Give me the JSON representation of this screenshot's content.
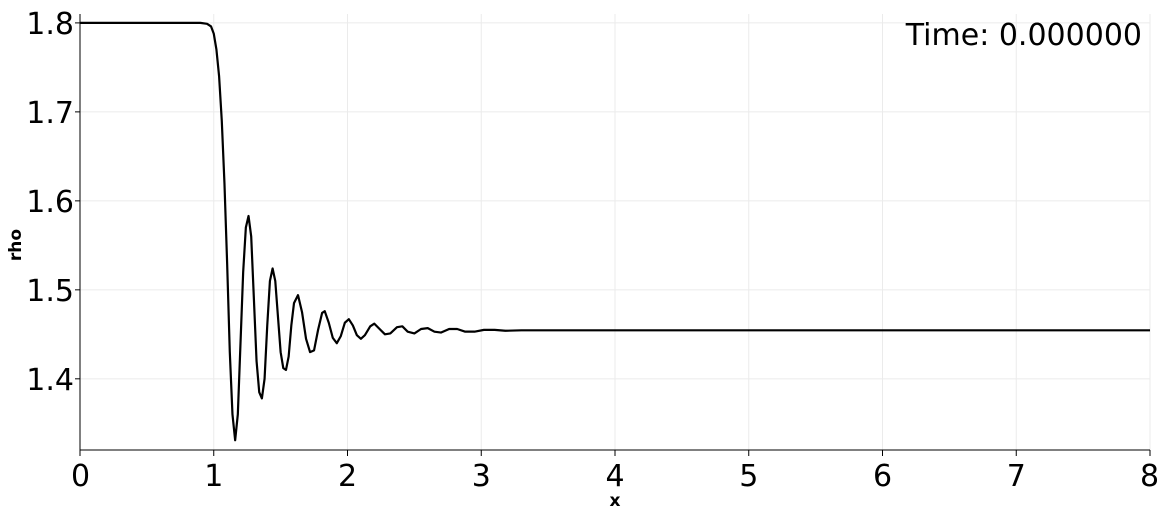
{
  "annotation": {
    "time_text": "Time: 0.000000"
  },
  "chart_data": {
    "type": "line",
    "xlabel": "x",
    "ylabel": "rho",
    "xlim": [
      0,
      8
    ],
    "ylim": [
      1.32,
      1.81
    ],
    "x_ticks": [
      0,
      1,
      2,
      3,
      4,
      5,
      6,
      7,
      8
    ],
    "x_tick_labels": [
      "0",
      "1",
      "2",
      "3",
      "4",
      "5",
      "6",
      "7",
      "8"
    ],
    "y_ticks": [
      1.4,
      1.5,
      1.6,
      1.7,
      1.8
    ],
    "y_tick_labels": [
      "1.4",
      "1.5",
      "1.6",
      "1.7",
      "1.8"
    ],
    "grid": true,
    "legend": "none",
    "series": [
      {
        "color": "#000000",
        "points": [
          [
            0.0,
            1.8
          ],
          [
            0.5,
            1.8
          ],
          [
            0.9,
            1.8
          ],
          [
            0.95,
            1.799
          ],
          [
            0.98,
            1.796
          ],
          [
            1.0,
            1.788
          ],
          [
            1.02,
            1.77
          ],
          [
            1.04,
            1.74
          ],
          [
            1.06,
            1.69
          ],
          [
            1.08,
            1.62
          ],
          [
            1.1,
            1.53
          ],
          [
            1.12,
            1.43
          ],
          [
            1.14,
            1.36
          ],
          [
            1.16,
            1.331
          ],
          [
            1.18,
            1.36
          ],
          [
            1.2,
            1.44
          ],
          [
            1.22,
            1.52
          ],
          [
            1.24,
            1.57
          ],
          [
            1.26,
            1.583
          ],
          [
            1.28,
            1.56
          ],
          [
            1.3,
            1.49
          ],
          [
            1.32,
            1.42
          ],
          [
            1.34,
            1.385
          ],
          [
            1.36,
            1.378
          ],
          [
            1.38,
            1.4
          ],
          [
            1.4,
            1.46
          ],
          [
            1.42,
            1.51
          ],
          [
            1.44,
            1.524
          ],
          [
            1.46,
            1.51
          ],
          [
            1.48,
            1.47
          ],
          [
            1.5,
            1.43
          ],
          [
            1.52,
            1.412
          ],
          [
            1.54,
            1.41
          ],
          [
            1.56,
            1.425
          ],
          [
            1.58,
            1.46
          ],
          [
            1.6,
            1.485
          ],
          [
            1.63,
            1.494
          ],
          [
            1.66,
            1.475
          ],
          [
            1.69,
            1.445
          ],
          [
            1.72,
            1.43
          ],
          [
            1.75,
            1.432
          ],
          [
            1.78,
            1.455
          ],
          [
            1.81,
            1.474
          ],
          [
            1.83,
            1.476
          ],
          [
            1.86,
            1.463
          ],
          [
            1.89,
            1.446
          ],
          [
            1.92,
            1.44
          ],
          [
            1.95,
            1.448
          ],
          [
            1.98,
            1.463
          ],
          [
            2.01,
            1.467
          ],
          [
            2.04,
            1.46
          ],
          [
            2.07,
            1.449
          ],
          [
            2.1,
            1.445
          ],
          [
            2.13,
            1.449
          ],
          [
            2.17,
            1.459
          ],
          [
            2.2,
            1.462
          ],
          [
            2.24,
            1.456
          ],
          [
            2.28,
            1.45
          ],
          [
            2.32,
            1.451
          ],
          [
            2.37,
            1.458
          ],
          [
            2.41,
            1.459
          ],
          [
            2.45,
            1.453
          ],
          [
            2.5,
            1.451
          ],
          [
            2.55,
            1.456
          ],
          [
            2.6,
            1.457
          ],
          [
            2.65,
            1.453
          ],
          [
            2.7,
            1.452
          ],
          [
            2.76,
            1.456
          ],
          [
            2.82,
            1.456
          ],
          [
            2.88,
            1.453
          ],
          [
            2.95,
            1.453
          ],
          [
            3.02,
            1.455
          ],
          [
            3.1,
            1.455
          ],
          [
            3.18,
            1.454
          ],
          [
            3.3,
            1.4545
          ],
          [
            3.5,
            1.4545
          ],
          [
            4.0,
            1.4545
          ],
          [
            5.0,
            1.4545
          ],
          [
            6.0,
            1.4545
          ],
          [
            7.0,
            1.4545
          ],
          [
            8.0,
            1.4545
          ]
        ]
      }
    ]
  }
}
